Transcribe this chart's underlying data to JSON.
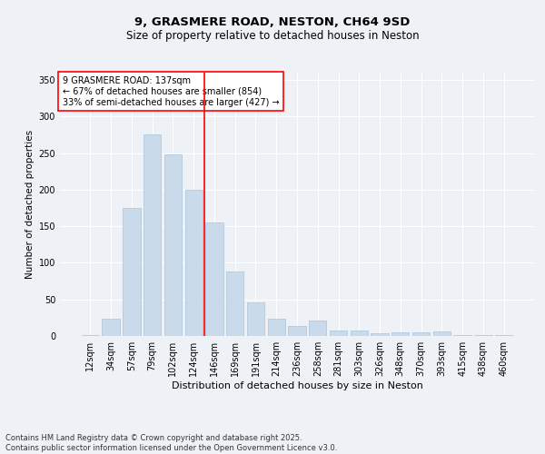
{
  "title_line1": "9, GRASMERE ROAD, NESTON, CH64 9SD",
  "title_line2": "Size of property relative to detached houses in Neston",
  "xlabel": "Distribution of detached houses by size in Neston",
  "ylabel": "Number of detached properties",
  "categories": [
    "12sqm",
    "34sqm",
    "57sqm",
    "79sqm",
    "102sqm",
    "124sqm",
    "146sqm",
    "169sqm",
    "191sqm",
    "214sqm",
    "236sqm",
    "258sqm",
    "281sqm",
    "303sqm",
    "326sqm",
    "348sqm",
    "370sqm",
    "393sqm",
    "415sqm",
    "438sqm",
    "460sqm"
  ],
  "values": [
    1,
    24,
    175,
    275,
    248,
    200,
    155,
    88,
    46,
    24,
    14,
    21,
    7,
    8,
    4,
    5,
    5,
    6,
    1,
    1,
    1
  ],
  "bar_color": "#c9daea",
  "bar_edge_color": "#a8c4d8",
  "vline_x": 5.5,
  "vline_color": "red",
  "annotation_text": "9 GRASMERE ROAD: 137sqm\n← 67% of detached houses are smaller (854)\n33% of semi-detached houses are larger (427) →",
  "annotation_box_color": "white",
  "annotation_box_edge": "red",
  "ylim": [
    0,
    360
  ],
  "yticks": [
    0,
    50,
    100,
    150,
    200,
    250,
    300,
    350
  ],
  "footer_line1": "Contains HM Land Registry data © Crown copyright and database right 2025.",
  "footer_line2": "Contains public sector information licensed under the Open Government Licence v3.0.",
  "bg_color": "#eef2f7",
  "plot_bg_color": "#eef2f7",
  "title1_fontsize": 9.5,
  "title2_fontsize": 8.5,
  "xlabel_fontsize": 8,
  "ylabel_fontsize": 7.5,
  "tick_fontsize": 7,
  "annot_fontsize": 7,
  "footer_fontsize": 6
}
